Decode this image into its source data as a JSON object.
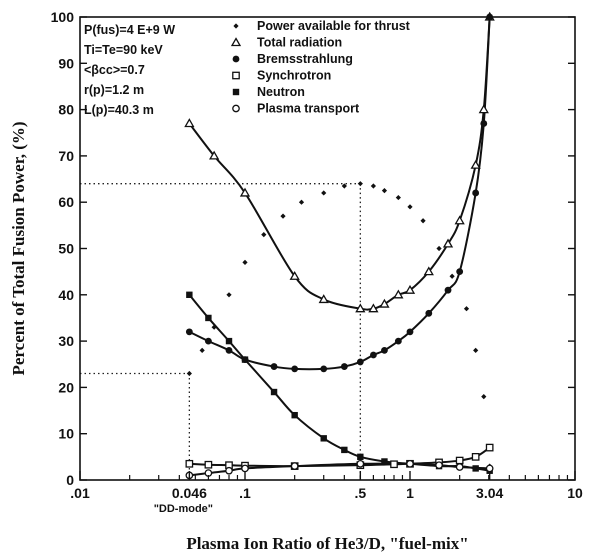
{
  "chart_data": {
    "type": "scatter",
    "title": "",
    "xlabel": "Plasma Ion Ratio of He3/D, \"fuel-mix\"",
    "ylabel": "Percent of Total Fusion Power, (%)",
    "x_scale": "log",
    "xlim": [
      0.01,
      10
    ],
    "ylim": [
      0,
      100
    ],
    "x_ticks": [
      {
        "value": 0.01,
        "label": ".01"
      },
      {
        "value": 0.046,
        "label": "0.046"
      },
      {
        "value": 0.1,
        "label": ".1"
      },
      {
        "value": 0.5,
        "label": ".5"
      },
      {
        "value": 1,
        "label": "1"
      },
      {
        "value": 3.04,
        "label": "3.04"
      },
      {
        "value": 10,
        "label": "10"
      }
    ],
    "y_ticks": [
      0,
      10,
      20,
      30,
      40,
      50,
      60,
      70,
      80,
      90,
      100
    ],
    "x_annotation": {
      "value": 0.046,
      "label": "\"DD-mode\""
    },
    "parameters": [
      "P(fus)=4 E+9 W",
      "Ti=Te=90 keV",
      "<βcc>=0.7",
      "r(p)=1.2 m",
      "L(p)=40.3 m"
    ],
    "reference_lines": [
      {
        "x": 0.046,
        "y": 23
      },
      {
        "x": 0.5,
        "y": 64
      }
    ],
    "series": [
      {
        "name": "Power available for thrust",
        "marker": "diamond",
        "curve": false,
        "x": [
          0.046,
          0.055,
          0.065,
          0.08,
          0.1,
          0.13,
          0.17,
          0.22,
          0.3,
          0.4,
          0.5,
          0.6,
          0.7,
          0.85,
          1.0,
          1.2,
          1.5,
          1.8,
          2.2,
          2.5,
          2.8,
          3.04
        ],
        "y": [
          23,
          28,
          33,
          40,
          47,
          53,
          57,
          60,
          62,
          63.5,
          64,
          63.5,
          62.5,
          61,
          59,
          56,
          50,
          44,
          37,
          28,
          18,
          3
        ]
      },
      {
        "name": "Total radiation",
        "marker": "triangle",
        "curve": true,
        "x": [
          0.046,
          0.065,
          0.1,
          0.2,
          0.3,
          0.5,
          0.6,
          0.7,
          0.85,
          1.0,
          1.3,
          1.7,
          2.0,
          2.5,
          2.8,
          3.04
        ],
        "y": [
          77,
          70,
          62,
          44,
          39,
          37,
          37,
          38,
          40,
          41,
          45,
          51,
          56,
          68,
          80,
          100
        ]
      },
      {
        "name": "Bremsstrahlung",
        "marker": "filled-circle",
        "curve": true,
        "x": [
          0.046,
          0.06,
          0.08,
          0.1,
          0.15,
          0.2,
          0.3,
          0.4,
          0.5,
          0.6,
          0.7,
          0.85,
          1.0,
          1.3,
          1.7,
          2.0,
          2.5,
          2.8,
          3.04
        ],
        "y": [
          32,
          30,
          28,
          26,
          24.5,
          24,
          24,
          24.5,
          25.5,
          27,
          28,
          30,
          32,
          36,
          41,
          45,
          62,
          77,
          100
        ]
      },
      {
        "name": "Synchrotron",
        "marker": "open-square",
        "curve": true,
        "x": [
          0.046,
          0.06,
          0.08,
          0.1,
          0.2,
          0.5,
          0.8,
          1.0,
          1.5,
          2.0,
          2.5,
          3.04
        ],
        "y": [
          3.5,
          3.3,
          3.2,
          3.1,
          3.0,
          3.2,
          3.4,
          3.5,
          3.8,
          4.2,
          5,
          7
        ]
      },
      {
        "name": "Neutron",
        "marker": "filled-square",
        "curve": true,
        "x": [
          0.046,
          0.06,
          0.08,
          0.1,
          0.15,
          0.2,
          0.3,
          0.4,
          0.5,
          0.7,
          1.0,
          1.5,
          2.0,
          2.5,
          3.04
        ],
        "y": [
          40,
          35,
          30,
          26,
          19,
          14,
          9,
          6.5,
          5,
          4,
          3.5,
          3,
          3,
          2.5,
          2
        ]
      },
      {
        "name": "Plasma transport",
        "marker": "open-circle",
        "curve": true,
        "x": [
          0.046,
          0.06,
          0.08,
          0.1,
          0.2,
          0.5,
          1.0,
          1.5,
          2.0,
          3.04
        ],
        "y": [
          1,
          1.5,
          2,
          2.5,
          3,
          3.5,
          3.5,
          3.2,
          2.8,
          2.5
        ]
      }
    ]
  }
}
